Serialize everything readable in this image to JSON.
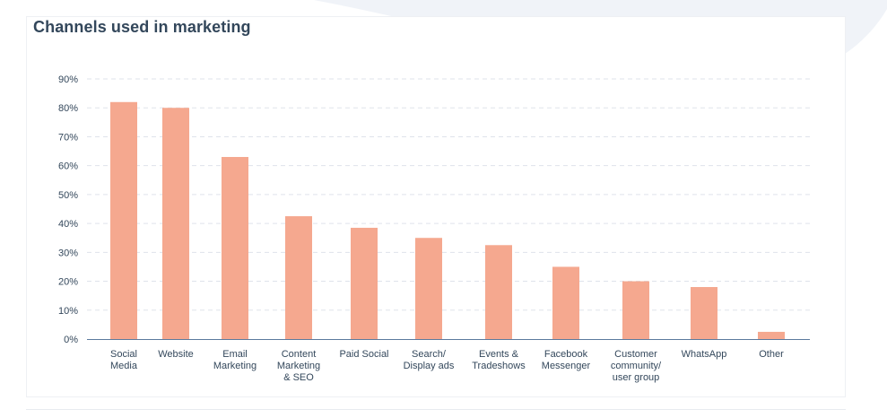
{
  "chart_data": {
    "type": "bar",
    "title": "Channels used in marketing",
    "xlabel": "",
    "ylabel": "",
    "ylim": [
      0,
      90
    ],
    "yticks": [
      0,
      10,
      20,
      30,
      40,
      50,
      60,
      70,
      80,
      90
    ],
    "ytick_labels": [
      "0%",
      "10%",
      "20%",
      "30%",
      "40%",
      "50%",
      "60%",
      "70%",
      "80%",
      "90%"
    ],
    "categories": [
      [
        "Social",
        "Media"
      ],
      [
        "Website"
      ],
      [
        "Email",
        "Marketing"
      ],
      [
        "Content",
        "Marketing",
        "& SEO"
      ],
      [
        "Paid Social"
      ],
      [
        "Search/",
        "Display ads"
      ],
      [
        "Events &",
        "Tradeshows"
      ],
      [
        "Facebook",
        "Messenger"
      ],
      [
        "Customer",
        "community/",
        "user group"
      ],
      [
        "WhatsApp"
      ],
      [
        "Other"
      ]
    ],
    "values": [
      82,
      80,
      63,
      42.5,
      38.5,
      35,
      32.5,
      25,
      20,
      18,
      2.5
    ],
    "grid": true,
    "bar_color": "#f5a88f",
    "grid_color": "#dfe3eb",
    "axis_color": "#5b7a9d",
    "text_color": "#33475b",
    "wave_color": "#f0f3f8"
  }
}
